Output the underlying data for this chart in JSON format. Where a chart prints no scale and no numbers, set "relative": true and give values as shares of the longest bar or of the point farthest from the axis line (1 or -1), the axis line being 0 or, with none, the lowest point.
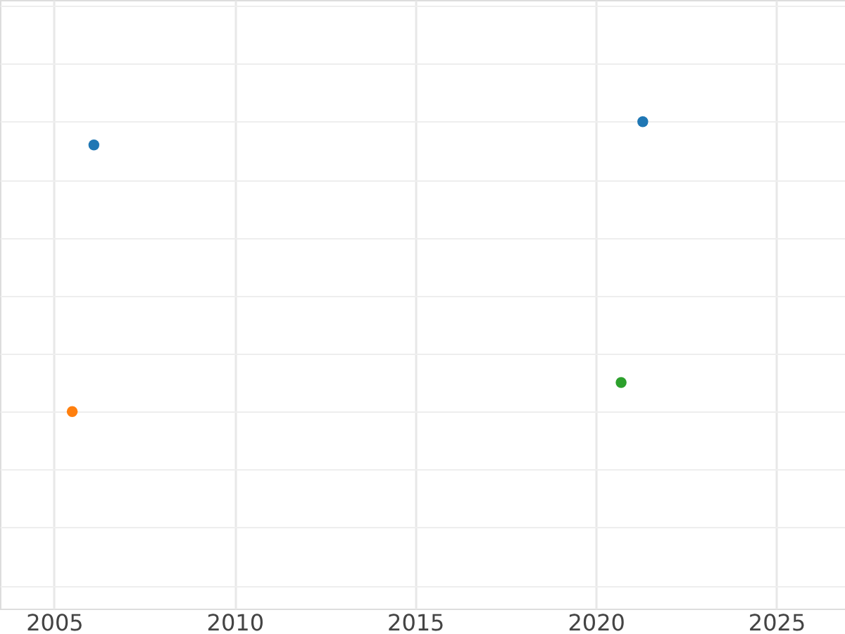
{
  "chart_data": {
    "type": "scatter",
    "relative": true,
    "grid": true,
    "marker": "circle",
    "tick_labels": "x",
    "xlim": [
      2003.5,
      2026.9
    ],
    "xticks": [
      2005,
      2010,
      2015,
      2020,
      2025
    ],
    "series": [
      {
        "color": "#1f77b4",
        "x": [
          2006.1,
          2021.3
        ],
        "values": [
          0.92,
          1
        ]
      },
      {
        "color": "#2ca02c",
        "x": [
          2020.7
        ],
        "values": [
          0.1
        ]
      },
      {
        "color": "#ff7f0e",
        "x": [
          2005.5
        ],
        "values": [
          0
        ]
      }
    ]
  }
}
